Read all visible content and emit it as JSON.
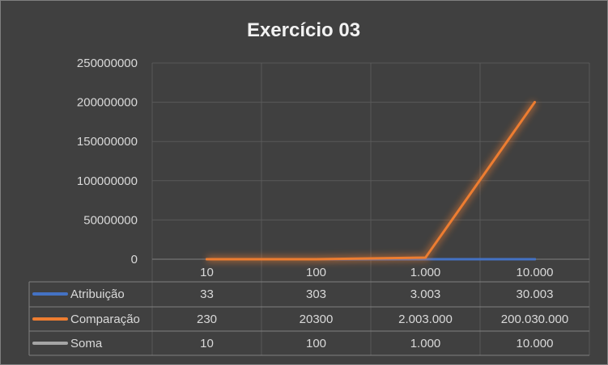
{
  "chart_data": {
    "type": "line",
    "title": "Exercício 03",
    "categories": [
      "10",
      "100",
      "1.000",
      "10.000"
    ],
    "x": [
      10,
      100,
      1000,
      10000
    ],
    "ylim": [
      0,
      250000000
    ],
    "yticks": [
      "0",
      "50000000",
      "100000000",
      "150000000",
      "200000000",
      "250000000"
    ],
    "ytick_values": [
      0,
      50000000,
      100000000,
      150000000,
      200000000,
      250000000
    ],
    "grid": true,
    "legend": "data-table",
    "series": [
      {
        "name": "Atribuição",
        "color": "#4472c4",
        "values": [
          33,
          303,
          3003,
          30003
        ],
        "labels": [
          "33",
          "303",
          "3.003",
          "30.003"
        ]
      },
      {
        "name": "Comparação",
        "color": "#ed7d31",
        "values": [
          230,
          20300,
          2003000,
          200030000
        ],
        "labels": [
          "230",
          "20300",
          "2.003.000",
          "200.030.000"
        ]
      },
      {
        "name": "Soma",
        "color": "#a5a5a5",
        "values": [
          10,
          100,
          1000,
          10000
        ],
        "labels": [
          "10",
          "100",
          "1.000",
          "10.000"
        ]
      }
    ]
  }
}
